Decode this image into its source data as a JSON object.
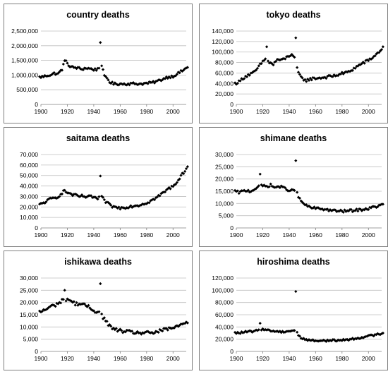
{
  "chart_data": [
    {
      "type": "scatter",
      "title": "country deaths",
      "xlim": [
        1900,
        2010
      ],
      "ylim": [
        0,
        2500000
      ],
      "xticks": [
        "1900",
        "1920",
        "1940",
        "1960",
        "1980",
        "2000"
      ],
      "yticks": [
        "0",
        "500,000",
        "1,000,000",
        "1,500,000",
        "2,000,000",
        "2,500,000"
      ],
      "grid": "horizontal",
      "marker_color": "#000000",
      "anchors": [
        [
          1899,
          930000
        ],
        [
          1902,
          950000
        ],
        [
          1905,
          990000
        ],
        [
          1908,
          1010000
        ],
        [
          1910,
          1060000
        ],
        [
          1913,
          1040000
        ],
        [
          1916,
          1200000
        ],
        [
          1918,
          1490000
        ],
        [
          1920,
          1420000
        ],
        [
          1922,
          1280000
        ],
        [
          1925,
          1260000
        ],
        [
          1928,
          1240000
        ],
        [
          1931,
          1200000
        ],
        [
          1934,
          1240000
        ],
        [
          1937,
          1220000
        ],
        [
          1940,
          1190000
        ],
        [
          1942,
          1190000
        ],
        [
          1944,
          1250000
        ],
        [
          1946,
          1350000
        ],
        [
          1948,
          950000
        ],
        [
          1950,
          900000
        ],
        [
          1952,
          770000
        ],
        [
          1955,
          700000
        ],
        [
          1960,
          700000
        ],
        [
          1965,
          700000
        ],
        [
          1970,
          710000
        ],
        [
          1975,
          700000
        ],
        [
          1980,
          720000
        ],
        [
          1985,
          750000
        ],
        [
          1990,
          820000
        ],
        [
          1995,
          920000
        ],
        [
          2000,
          960000
        ],
        [
          2005,
          1090000
        ],
        [
          2011,
          1260000
        ]
      ],
      "jitter": 40000,
      "outliers": [
        [
          1945,
          2110000
        ],
        [
          1918,
          1490000
        ]
      ]
    },
    {
      "type": "scatter",
      "title": "tokyo deaths",
      "xlim": [
        1900,
        2010
      ],
      "ylim": [
        0,
        140000
      ],
      "xticks": [
        "1900",
        "1920",
        "1940",
        "1960",
        "1980",
        "2000"
      ],
      "yticks": [
        "0",
        "20,000",
        "40,000",
        "60,000",
        "80,000",
        "100,000",
        "120,000",
        "140,000"
      ],
      "grid": "horizontal",
      "marker_color": "#000000",
      "anchors": [
        [
          1899,
          40000
        ],
        [
          1902,
          43000
        ],
        [
          1905,
          50000
        ],
        [
          1908,
          55000
        ],
        [
          1911,
          58000
        ],
        [
          1914,
          62000
        ],
        [
          1917,
          72000
        ],
        [
          1920,
          82000
        ],
        [
          1923,
          88000
        ],
        [
          1925,
          80000
        ],
        [
          1928,
          76000
        ],
        [
          1931,
          86000
        ],
        [
          1934,
          84000
        ],
        [
          1937,
          88000
        ],
        [
          1940,
          93000
        ],
        [
          1942,
          96000
        ],
        [
          1944,
          88000
        ],
        [
          1946,
          68000
        ],
        [
          1948,
          55000
        ],
        [
          1950,
          49000
        ],
        [
          1953,
          46000
        ],
        [
          1957,
          49000
        ],
        [
          1960,
          50000
        ],
        [
          1965,
          51000
        ],
        [
          1970,
          53000
        ],
        [
          1975,
          55000
        ],
        [
          1980,
          59000
        ],
        [
          1985,
          62000
        ],
        [
          1990,
          70000
        ],
        [
          1995,
          78000
        ],
        [
          2000,
          84000
        ],
        [
          2005,
          93000
        ],
        [
          2011,
          108000
        ]
      ],
      "jitter": 2500,
      "outliers": [
        [
          1945,
          127000
        ],
        [
          1923,
          110000
        ]
      ]
    },
    {
      "type": "scatter",
      "title": "saitama deaths",
      "xlim": [
        1900,
        2010
      ],
      "ylim": [
        0,
        70000
      ],
      "xticks": [
        "1900",
        "1920",
        "1940",
        "1960",
        "1980",
        "2000"
      ],
      "yticks": [
        "0",
        "10,000",
        "20,000",
        "30,000",
        "40,000",
        "50,000",
        "60,000",
        "70,000"
      ],
      "grid": "horizontal",
      "marker_color": "#000000",
      "anchors": [
        [
          1899,
          22000
        ],
        [
          1902,
          24000
        ],
        [
          1905,
          26000
        ],
        [
          1908,
          28000
        ],
        [
          1911,
          28500
        ],
        [
          1914,
          31000
        ],
        [
          1917,
          35000
        ],
        [
          1920,
          34000
        ],
        [
          1923,
          32000
        ],
        [
          1926,
          31000
        ],
        [
          1929,
          30000
        ],
        [
          1932,
          30500
        ],
        [
          1935,
          29000
        ],
        [
          1938,
          30000
        ],
        [
          1941,
          29000
        ],
        [
          1943,
          27500
        ],
        [
          1945,
          30000
        ],
        [
          1947,
          28000
        ],
        [
          1949,
          25000
        ],
        [
          1952,
          22000
        ],
        [
          1955,
          20000
        ],
        [
          1960,
          19000
        ],
        [
          1965,
          20000
        ],
        [
          1970,
          21000
        ],
        [
          1975,
          22000
        ],
        [
          1980,
          24000
        ],
        [
          1985,
          27000
        ],
        [
          1990,
          31000
        ],
        [
          1995,
          36000
        ],
        [
          2000,
          40000
        ],
        [
          2005,
          47000
        ],
        [
          2011,
          59000
        ]
      ],
      "jitter": 1300,
      "outliers": [
        [
          1945,
          49500
        ]
      ]
    },
    {
      "type": "scatter",
      "title": "shimane deaths",
      "xlim": [
        1900,
        2010
      ],
      "ylim": [
        0,
        30000
      ],
      "xticks": [
        "1900",
        "1920",
        "1940",
        "1960",
        "1980",
        "2000"
      ],
      "yticks": [
        "0",
        "5,000",
        "10,000",
        "15,000",
        "20,000",
        "25,000",
        "30,000"
      ],
      "grid": "horizontal",
      "marker_color": "#000000",
      "anchors": [
        [
          1899,
          15000
        ],
        [
          1902,
          14500
        ],
        [
          1905,
          15000
        ],
        [
          1908,
          15300
        ],
        [
          1911,
          15000
        ],
        [
          1914,
          16000
        ],
        [
          1917,
          17000
        ],
        [
          1920,
          17200
        ],
        [
          1923,
          17000
        ],
        [
          1926,
          17500
        ],
        [
          1929,
          16500
        ],
        [
          1932,
          17000
        ],
        [
          1935,
          16500
        ],
        [
          1938,
          16000
        ],
        [
          1941,
          15000
        ],
        [
          1943,
          15500
        ],
        [
          1945,
          16000
        ],
        [
          1947,
          12500
        ],
        [
          1949,
          11000
        ],
        [
          1952,
          9500
        ],
        [
          1955,
          8500
        ],
        [
          1960,
          8000
        ],
        [
          1965,
          7800
        ],
        [
          1970,
          7300
        ],
        [
          1975,
          7000
        ],
        [
          1980,
          6800
        ],
        [
          1985,
          7000
        ],
        [
          1990,
          7200
        ],
        [
          1995,
          7500
        ],
        [
          2000,
          7900
        ],
        [
          2005,
          8600
        ],
        [
          2011,
          9500
        ]
      ],
      "jitter": 500,
      "outliers": [
        [
          1945,
          27500
        ],
        [
          1918,
          22000
        ]
      ]
    },
    {
      "type": "scatter",
      "title": "ishikawa deaths",
      "xlim": [
        1900,
        2010
      ],
      "ylim": [
        0,
        30000
      ],
      "xticks": [
        "1900",
        "1920",
        "1940",
        "1960",
        "1980",
        "2000"
      ],
      "yticks": [
        "0",
        "5,000",
        "10,000",
        "15,000",
        "20,000",
        "25,000",
        "30,000"
      ],
      "grid": "horizontal",
      "marker_color": "#000000",
      "anchors": [
        [
          1899,
          16000
        ],
        [
          1902,
          16800
        ],
        [
          1905,
          17500
        ],
        [
          1908,
          18500
        ],
        [
          1911,
          19000
        ],
        [
          1914,
          20000
        ],
        [
          1917,
          21000
        ],
        [
          1920,
          21500
        ],
        [
          1923,
          20500
        ],
        [
          1926,
          19500
        ],
        [
          1929,
          19500
        ],
        [
          1932,
          19000
        ],
        [
          1935,
          18500
        ],
        [
          1938,
          17500
        ],
        [
          1941,
          16500
        ],
        [
          1943,
          16000
        ],
        [
          1945,
          16000
        ],
        [
          1947,
          14000
        ],
        [
          1949,
          12500
        ],
        [
          1952,
          10500
        ],
        [
          1955,
          9000
        ],
        [
          1960,
          8500
        ],
        [
          1965,
          8000
        ],
        [
          1970,
          7800
        ],
        [
          1975,
          7600
        ],
        [
          1980,
          7500
        ],
        [
          1985,
          7700
        ],
        [
          1990,
          8300
        ],
        [
          1995,
          9000
        ],
        [
          2000,
          9600
        ],
        [
          2005,
          10500
        ],
        [
          2011,
          12200
        ]
      ],
      "jitter": 700,
      "outliers": [
        [
          1945,
          27700
        ],
        [
          1918,
          25000
        ]
      ]
    },
    {
      "type": "scatter",
      "title": "hiroshima deaths",
      "xlim": [
        1900,
        2010
      ],
      "ylim": [
        0,
        120000
      ],
      "xticks": [
        "1900",
        "1920",
        "1940",
        "1960",
        "1980",
        "2000"
      ],
      "yticks": [
        "0",
        "20,000",
        "40,000",
        "60,000",
        "80,000",
        "100,000",
        "120,000"
      ],
      "grid": "horizontal",
      "marker_color": "#000000",
      "anchors": [
        [
          1899,
          30000
        ],
        [
          1902,
          30500
        ],
        [
          1905,
          31000
        ],
        [
          1908,
          32000
        ],
        [
          1911,
          32500
        ],
        [
          1914,
          33000
        ],
        [
          1917,
          35000
        ],
        [
          1920,
          37000
        ],
        [
          1923,
          35000
        ],
        [
          1926,
          34000
        ],
        [
          1929,
          33000
        ],
        [
          1932,
          32500
        ],
        [
          1935,
          32000
        ],
        [
          1938,
          33000
        ],
        [
          1941,
          33500
        ],
        [
          1943,
          34000
        ],
        [
          1945,
          36000
        ],
        [
          1947,
          26000
        ],
        [
          1949,
          22000
        ],
        [
          1952,
          20000
        ],
        [
          1955,
          18500
        ],
        [
          1960,
          17500
        ],
        [
          1965,
          17500
        ],
        [
          1970,
          17800
        ],
        [
          1975,
          18000
        ],
        [
          1980,
          18500
        ],
        [
          1985,
          19500
        ],
        [
          1990,
          21000
        ],
        [
          1995,
          23000
        ],
        [
          2000,
          25000
        ],
        [
          2005,
          27000
        ],
        [
          2011,
          30000
        ]
      ],
      "jitter": 1500,
      "outliers": [
        [
          1945,
          98000
        ],
        [
          1918,
          46000
        ]
      ]
    }
  ]
}
